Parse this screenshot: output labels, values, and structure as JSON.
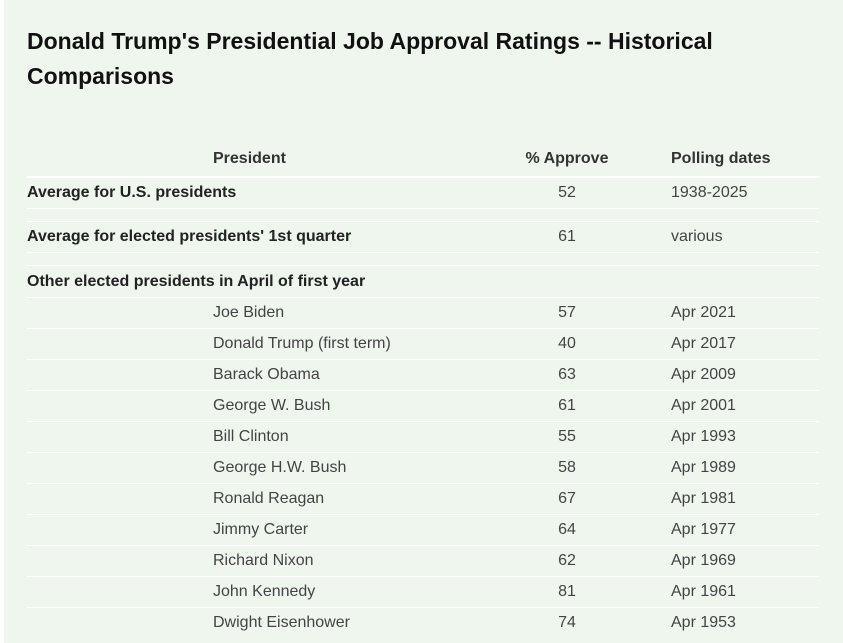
{
  "title": "Donald Trump's Presidential Job Approval Ratings -- Historical Comparisons",
  "chart_data": {
    "type": "table",
    "title": "Donald Trump's Presidential Job Approval Ratings -- Historical Comparisons",
    "columns": [
      "President",
      "% Approve",
      "Polling dates"
    ],
    "summary_rows": [
      {
        "label": "Average for U.S. presidents",
        "approve": "52",
        "dates": "1938-2025"
      },
      {
        "label": "Average for elected presidents' 1st quarter",
        "approve": "61",
        "dates": "various"
      }
    ],
    "section_label": "Other elected presidents in April of first year",
    "rows": [
      {
        "president": "Joe Biden",
        "approve": "57",
        "dates": "Apr 2021"
      },
      {
        "president": "Donald Trump (first term)",
        "approve": "40",
        "dates": "Apr 2017"
      },
      {
        "president": "Barack Obama",
        "approve": "63",
        "dates": "Apr 2009"
      },
      {
        "president": "George W. Bush",
        "approve": "61",
        "dates": "Apr 2001"
      },
      {
        "president": "Bill Clinton",
        "approve": "55",
        "dates": "Apr 1993"
      },
      {
        "president": "George H.W. Bush",
        "approve": "58",
        "dates": "Apr 1989"
      },
      {
        "president": "Ronald Reagan",
        "approve": "67",
        "dates": "Apr 1981"
      },
      {
        "president": "Jimmy Carter",
        "approve": "64",
        "dates": "Apr 1977"
      },
      {
        "president": "Richard Nixon",
        "approve": "62",
        "dates": "Apr 1969"
      },
      {
        "president": "John Kennedy",
        "approve": "81",
        "dates": "Apr 1961"
      },
      {
        "president": "Dwight Eisenhower",
        "approve": "74",
        "dates": "Apr 1953"
      }
    ]
  }
}
